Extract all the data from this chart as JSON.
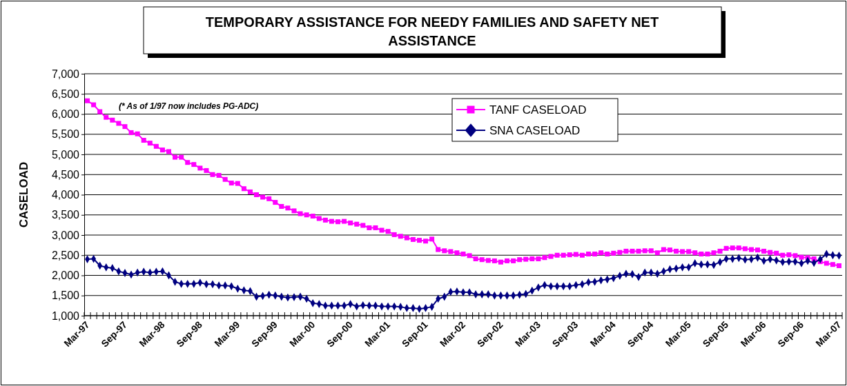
{
  "chart_data": {
    "type": "line",
    "title": "TEMPORARY ASSISTANCE FOR NEEDY FAMILIES AND SAFETY NET ASSISTANCE",
    "ylabel": "CASELOAD",
    "categories": [
      "Mar-97",
      null,
      null,
      null,
      null,
      null,
      "Sep-97",
      null,
      null,
      null,
      null,
      null,
      "Mar-98",
      null,
      null,
      null,
      null,
      null,
      "Sep-98",
      null,
      null,
      null,
      null,
      null,
      "Mar-99",
      null,
      null,
      null,
      null,
      null,
      "Sep-99",
      null,
      null,
      null,
      null,
      null,
      "Mar-00",
      null,
      null,
      null,
      null,
      null,
      "Sep-00",
      null,
      null,
      null,
      null,
      null,
      "Mar-01",
      null,
      null,
      null,
      null,
      null,
      "Sep-01",
      null,
      null,
      null,
      null,
      null,
      "Mar-02",
      null,
      null,
      null,
      null,
      null,
      "Sep-02",
      null,
      null,
      null,
      null,
      null,
      "Mar-03",
      null,
      null,
      null,
      null,
      null,
      "Sep-03",
      null,
      null,
      null,
      null,
      null,
      "Mar-04",
      null,
      null,
      null,
      null,
      null,
      "Sep-04",
      null,
      null,
      null,
      null,
      null,
      "Mar-05",
      null,
      null,
      null,
      null,
      null,
      "Sep-05",
      null,
      null,
      null,
      null,
      null,
      "Mar-06",
      null,
      null,
      null,
      null,
      null,
      "Sep-06",
      null,
      null,
      null,
      null,
      null,
      "Mar-07"
    ],
    "series": [
      {
        "name": "TANF CASELOAD",
        "color": "#ff00ff",
        "marker": "square",
        "values": [
          6330,
          6230,
          6060,
          5920,
          5850,
          5770,
          5690,
          5540,
          5510,
          5350,
          5280,
          5200,
          5110,
          5070,
          4930,
          4930,
          4800,
          4750,
          4660,
          4600,
          4500,
          4480,
          4380,
          4290,
          4280,
          4150,
          4070,
          4000,
          3940,
          3900,
          3810,
          3710,
          3670,
          3600,
          3530,
          3500,
          3470,
          3410,
          3370,
          3340,
          3330,
          3340,
          3300,
          3270,
          3240,
          3180,
          3180,
          3120,
          3090,
          3010,
          2970,
          2930,
          2890,
          2870,
          2850,
          2900,
          2640,
          2610,
          2590,
          2560,
          2530,
          2490,
          2410,
          2390,
          2370,
          2360,
          2330,
          2360,
          2360,
          2390,
          2400,
          2410,
          2410,
          2440,
          2470,
          2500,
          2500,
          2510,
          2520,
          2500,
          2530,
          2530,
          2560,
          2530,
          2550,
          2570,
          2600,
          2600,
          2600,
          2610,
          2610,
          2560,
          2640,
          2630,
          2600,
          2590,
          2590,
          2560,
          2530,
          2530,
          2560,
          2600,
          2670,
          2680,
          2680,
          2660,
          2640,
          2630,
          2600,
          2570,
          2550,
          2500,
          2510,
          2490,
          2450,
          2440,
          2410,
          2340,
          2300,
          2270,
          2240
        ]
      },
      {
        "name": "SNA CASELOAD",
        "color": "#000080",
        "marker": "diamond",
        "values": [
          2400,
          2410,
          2240,
          2200,
          2180,
          2100,
          2060,
          2020,
          2070,
          2090,
          2070,
          2090,
          2100,
          2000,
          1840,
          1790,
          1790,
          1790,
          1820,
          1780,
          1780,
          1750,
          1750,
          1730,
          1670,
          1630,
          1610,
          1470,
          1490,
          1520,
          1500,
          1470,
          1450,
          1460,
          1470,
          1420,
          1310,
          1290,
          1250,
          1250,
          1250,
          1250,
          1290,
          1230,
          1260,
          1250,
          1250,
          1230,
          1230,
          1230,
          1220,
          1190,
          1190,
          1170,
          1190,
          1220,
          1420,
          1470,
          1590,
          1600,
          1580,
          1580,
          1530,
          1530,
          1530,
          1500,
          1500,
          1500,
          1500,
          1520,
          1540,
          1620,
          1700,
          1760,
          1730,
          1730,
          1730,
          1730,
          1760,
          1780,
          1830,
          1840,
          1880,
          1900,
          1930,
          1990,
          2040,
          2030,
          1960,
          2070,
          2070,
          2040,
          2100,
          2150,
          2170,
          2200,
          2200,
          2300,
          2270,
          2270,
          2260,
          2330,
          2410,
          2410,
          2430,
          2390,
          2400,
          2440,
          2360,
          2400,
          2370,
          2330,
          2340,
          2340,
          2300,
          2360,
          2310,
          2400,
          2530,
          2500,
          2490
        ]
      }
    ],
    "ylim": [
      1000,
      7000
    ],
    "yticks": [
      {
        "value": 1000,
        "label": "1,000"
      },
      {
        "value": 1500,
        "label": "1,500"
      },
      {
        "value": 2000,
        "label": "2,000"
      },
      {
        "value": 2500,
        "label": "2,500"
      },
      {
        "value": 3000,
        "label": "3,000"
      },
      {
        "value": 3500,
        "label": "3,500"
      },
      {
        "value": 4000,
        "label": "4,000"
      },
      {
        "value": 4500,
        "label": "4,500"
      },
      {
        "value": 5000,
        "label": "5,000"
      },
      {
        "value": 5500,
        "label": "5,500"
      },
      {
        "value": 6000,
        "label": "6,000"
      },
      {
        "value": 6500,
        "label": "6,500"
      },
      {
        "value": 7000,
        "label": "7,000"
      }
    ],
    "grid": "y",
    "legend": "top",
    "annotations": [
      "(* As of 1/97 now includes PG-ADC)"
    ]
  }
}
